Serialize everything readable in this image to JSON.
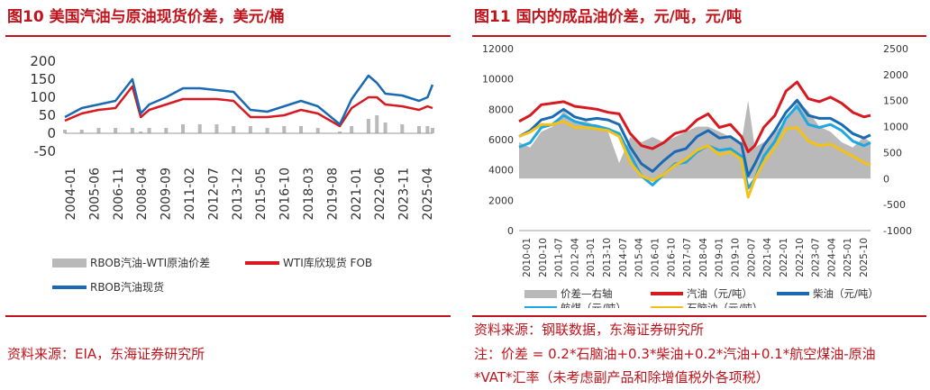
{
  "left": {
    "title": "图10  美国汽油与原油现货价差，美元/桶",
    "source": "资料来源：EIA，东海证券研究所"
  },
  "right": {
    "title": "图11  国内的成品油价差，元/吨，元/吨",
    "source": "资料来源：钢联数据，东海证券研究所",
    "note_line1": "注：价差 = 0.2*石脑油+0.3*柴油+0.2*汽油+0.1*航空煤油-原油",
    "note_line2": "*VAT*汇率（未考虑副产品和除增值税外各项税）"
  },
  "colors": {
    "red": "#d71920",
    "blue": "#1a6ab3",
    "cyan": "#1ea7e1",
    "yellow": "#f3c117",
    "gray": "#b9b9b9",
    "accent": "#c0141c"
  },
  "chart_data": [
    {
      "type": "line",
      "ylim": [
        -50,
        200
      ],
      "yticks": [
        "200",
        "150",
        "100",
        "50",
        "0",
        "-50"
      ],
      "xticks": [
        "2004-01",
        "2005-06",
        "2006-11",
        "2008-04",
        "2009-09",
        "2011-02",
        "2012-07",
        "2013-12",
        "2015-05",
        "2016-10",
        "2018-03",
        "2019-08",
        "2021-01",
        "2022-06",
        "2023-11",
        "2025-04"
      ],
      "x": [
        2004,
        2005,
        2006,
        2007,
        2008,
        2008.5,
        2009,
        2010,
        2011,
        2012,
        2013,
        2014,
        2015,
        2016,
        2017,
        2018,
        2019,
        2020.3,
        2021,
        2022,
        2022.5,
        2023,
        2024,
        2025,
        2025.5,
        2025.8
      ],
      "series": [
        {
          "name": "RBOB汽油-WTI原油价差",
          "kind": "bar",
          "values": [
            10,
            10,
            15,
            15,
            15,
            5,
            15,
            15,
            25,
            25,
            25,
            20,
            20,
            15,
            20,
            20,
            15,
            5,
            20,
            40,
            50,
            30,
            25,
            20,
            20,
            15
          ]
        },
        {
          "name": "WTI库欣现货 FOB",
          "kind": "line",
          "values": [
            35,
            55,
            65,
            70,
            130,
            45,
            65,
            80,
            95,
            95,
            95,
            90,
            45,
            45,
            50,
            65,
            55,
            20,
            70,
            100,
            100,
            80,
            75,
            65,
            75,
            70
          ]
        },
        {
          "name": "RBOB汽油现货",
          "kind": "line",
          "values": [
            45,
            70,
            80,
            90,
            150,
            55,
            80,
            100,
            125,
            125,
            120,
            115,
            65,
            60,
            75,
            90,
            75,
            25,
            95,
            160,
            140,
            110,
            105,
            90,
            100,
            135
          ]
        }
      ]
    },
    {
      "type": "line",
      "ylim": [
        0,
        12000
      ],
      "yticks_left": [
        "12000",
        "10000",
        "8000",
        "6000",
        "4000",
        "2000",
        "0"
      ],
      "ylim_right": [
        -1000,
        2500
      ],
      "yticks_right": [
        "2500",
        "2000",
        "1500",
        "1000",
        "500",
        "0",
        "-500",
        "-1000"
      ],
      "xticks": [
        "2010-01",
        "2010-10",
        "2011-07",
        "2012-04",
        "2013-01",
        "2013-10",
        "2014-07",
        "2015-04",
        "2016-01",
        "2016-10",
        "2017-07",
        "2018-04",
        "2019-01",
        "2019-10",
        "2020-07",
        "2021-04",
        "2022-01",
        "2022-10",
        "2023-07",
        "2024-04",
        "2025-01",
        "2025-10"
      ],
      "x": [
        2010,
        2010.5,
        2011,
        2011.5,
        2012,
        2012.5,
        2013,
        2013.5,
        2014,
        2014.5,
        2015,
        2015.5,
        2016,
        2016.5,
        2017,
        2017.5,
        2018,
        2018.5,
        2019,
        2019.5,
        2020,
        2020.3,
        2020.6,
        2021,
        2021.5,
        2022,
        2022.5,
        2023,
        2023.5,
        2024,
        2024.5,
        2025,
        2025.5,
        2025.8
      ],
      "series": [
        {
          "name": "价差—右轴",
          "kind": "area",
          "axis": "right",
          "values": [
            700,
            600,
            900,
            1000,
            1300,
            1100,
            1100,
            1000,
            900,
            300,
            800,
            700,
            800,
            700,
            800,
            900,
            1000,
            1000,
            900,
            800,
            700,
            1500,
            600,
            700,
            900,
            1100,
            1500,
            1300,
            1000,
            900,
            700,
            600,
            800,
            700
          ]
        },
        {
          "name": "汽油（元/吨）",
          "kind": "line",
          "axis": "left",
          "values": [
            7200,
            7600,
            8300,
            8400,
            8500,
            8200,
            8100,
            8000,
            7800,
            7700,
            6400,
            5600,
            5400,
            5800,
            6400,
            6600,
            7300,
            7700,
            6800,
            7000,
            6200,
            5200,
            5600,
            6800,
            7600,
            9200,
            9800,
            8700,
            8500,
            8800,
            8400,
            7800,
            7500,
            7600
          ]
        },
        {
          "name": "柴油（元/吨）",
          "kind": "line",
          "axis": "left",
          "values": [
            6200,
            6600,
            7300,
            7500,
            8000,
            7500,
            7300,
            7400,
            7300,
            7000,
            5500,
            4400,
            3900,
            4600,
            5200,
            5400,
            6200,
            6600,
            6100,
            6200,
            5700,
            3600,
            4400,
            5600,
            6600,
            7800,
            8600,
            7600,
            7400,
            7400,
            7000,
            6400,
            6100,
            6300
          ]
        },
        {
          "name": "航煤（元/吨）",
          "kind": "line",
          "axis": "left",
          "values": [
            5500,
            5800,
            6800,
            7000,
            7600,
            7200,
            7000,
            6900,
            6700,
            6400,
            5000,
            3600,
            3000,
            3700,
            4400,
            4500,
            5200,
            5600,
            5300,
            5400,
            4900,
            2800,
            3400,
            4900,
            5900,
            7400,
            8200,
            7000,
            6800,
            7000,
            6600,
            5900,
            5600,
            5800
          ]
        },
        {
          "name": "石脑油（元/吨）",
          "kind": "line",
          "axis": "left",
          "values": [
            6200,
            6500,
            7000,
            7000,
            7200,
            6800,
            6800,
            6700,
            6600,
            6200,
            4500,
            3600,
            3300,
            3700,
            4300,
            4700,
            5300,
            5600,
            5000,
            5200,
            4700,
            2200,
            3400,
            4500,
            5500,
            6700,
            6800,
            5900,
            5600,
            5700,
            5300,
            4900,
            4500,
            4300
          ]
        }
      ]
    }
  ]
}
